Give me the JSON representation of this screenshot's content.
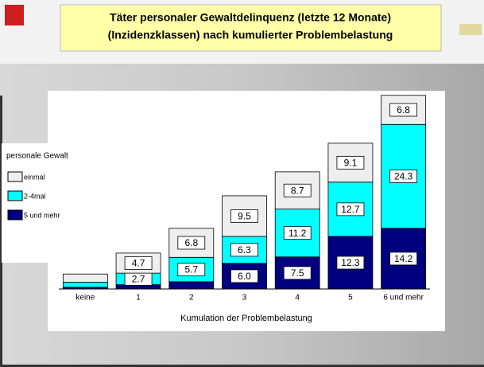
{
  "chart_data": {
    "type": "stacked_bar",
    "title": "Täter personaler Gewaltdelinquenz (letzte 12 Monate)",
    "subtitle": "(Inzidenzklassen) nach kumulierter Problembelastung",
    "x_label": "Kumulation der Problembelastung",
    "legend_title": "personale Gewalt",
    "categories": [
      "keine",
      "1",
      "2",
      "3",
      "4",
      "5",
      "6 und mehr"
    ],
    "series": [
      {
        "name": "5 und mehr",
        "color": "#000080",
        "values": [
          0.4,
          1.0,
          1.7,
          6.0,
          7.5,
          12.3,
          14.2
        ],
        "value_labels": [
          null,
          null,
          null,
          "6.0",
          "7.5",
          "12.3",
          "14.2"
        ]
      },
      {
        "name": "2-4mal",
        "color": "#00ffff",
        "values": [
          1.2,
          2.7,
          5.7,
          6.3,
          11.2,
          12.7,
          24.3
        ],
        "value_labels": [
          null,
          "2.7",
          "5.7",
          "6.3",
          "11.2",
          "12.7",
          "24.3"
        ]
      },
      {
        "name": "einmal",
        "color": "#eeeeee",
        "values": [
          1.9,
          4.7,
          6.8,
          9.5,
          8.7,
          9.1,
          6.8
        ],
        "value_labels": [
          null,
          "4.7",
          "6.8",
          "9.5",
          "8.7",
          "9.1",
          "6.8"
        ]
      }
    ],
    "ylim": [
      0,
      46
    ]
  }
}
